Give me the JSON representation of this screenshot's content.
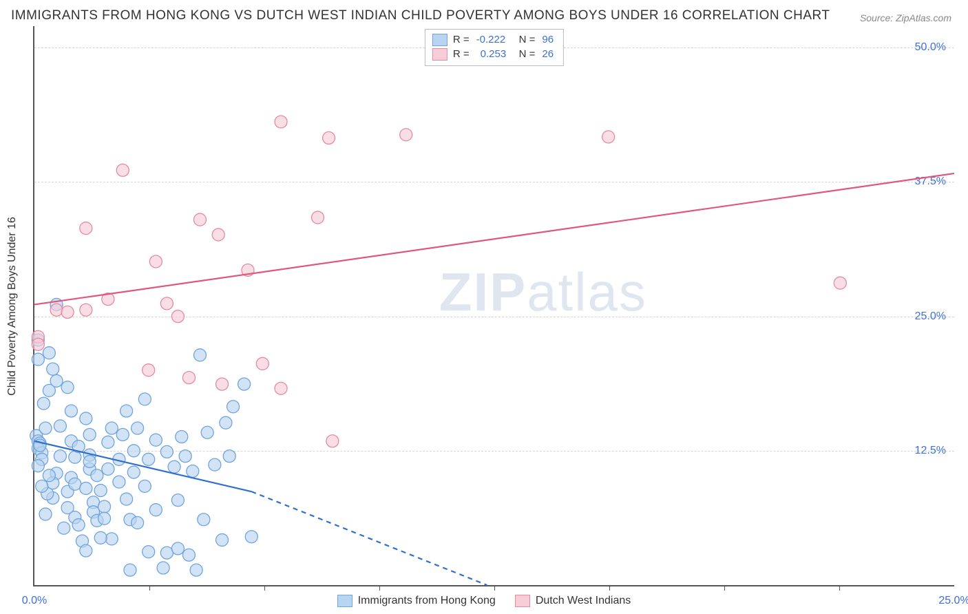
{
  "title": "IMMIGRANTS FROM HONG KONG VS DUTCH WEST INDIAN CHILD POVERTY AMONG BOYS UNDER 16 CORRELATION CHART",
  "source": "Source: ZipAtlas.com",
  "watermark_zip": "ZIP",
  "watermark_atlas": "atlas",
  "y_axis_label": "Child Poverty Among Boys Under 16",
  "chart": {
    "type": "scatter",
    "x_range": [
      0,
      25
    ],
    "y_range": [
      0,
      52
    ],
    "x_ticks": [
      {
        "v": 0,
        "label": "0.0%"
      },
      {
        "v": 25,
        "label": "25.0%"
      }
    ],
    "x_minor_ticks": [
      3.125,
      6.25,
      9.375,
      12.5,
      15.625,
      18.75,
      21.875
    ],
    "y_gridlines": [
      {
        "v": 12.5,
        "label": "12.5%"
      },
      {
        "v": 25,
        "label": "25.0%"
      },
      {
        "v": 37.5,
        "label": "37.5%"
      },
      {
        "v": 50,
        "label": "50.0%"
      }
    ],
    "background_color": "#ffffff",
    "grid_color": "#d5d5d5",
    "axis_color": "#555555",
    "tick_label_color": "#3d6fd6",
    "marker_radius": 9,
    "marker_stroke_width": 1.3,
    "seriesA": {
      "name": "Immigrants from Hong Kong",
      "fill": "#b9d4f0",
      "stroke": "#6fa4dd",
      "fill_opacity": 0.65,
      "R": "-0.222",
      "N": "96",
      "trend": {
        "solid": [
          [
            0,
            13.4
          ],
          [
            5.9,
            8.7
          ]
        ],
        "dashed": [
          [
            5.9,
            8.7
          ],
          [
            12.3,
            0
          ]
        ],
        "color": "#2f6fd0",
        "width": 2.2
      },
      "points": [
        [
          0.1,
          22.8
        ],
        [
          0.1,
          21.0
        ],
        [
          0.05,
          13.9
        ],
        [
          0.1,
          13.4
        ],
        [
          0.15,
          13.2
        ],
        [
          0.1,
          12.7
        ],
        [
          0.2,
          12.3
        ],
        [
          0.2,
          11.7
        ],
        [
          0.15,
          13.0
        ],
        [
          0.1,
          11.1
        ],
        [
          0.4,
          21.6
        ],
        [
          0.5,
          20.1
        ],
        [
          0.6,
          26.1
        ],
        [
          0.6,
          19.0
        ],
        [
          0.7,
          14.8
        ],
        [
          0.7,
          12.0
        ],
        [
          0.6,
          10.4
        ],
        [
          0.5,
          9.5
        ],
        [
          0.5,
          8.1
        ],
        [
          0.35,
          8.5
        ],
        [
          0.9,
          18.4
        ],
        [
          1.0,
          16.2
        ],
        [
          1.0,
          13.4
        ],
        [
          1.0,
          10.0
        ],
        [
          0.9,
          8.7
        ],
        [
          0.9,
          7.2
        ],
        [
          1.1,
          6.3
        ],
        [
          1.2,
          5.6
        ],
        [
          1.1,
          9.4
        ],
        [
          1.1,
          11.9
        ],
        [
          1.4,
          15.5
        ],
        [
          1.5,
          14.0
        ],
        [
          1.5,
          12.1
        ],
        [
          1.5,
          10.8
        ],
        [
          1.4,
          9.0
        ],
        [
          1.6,
          7.7
        ],
        [
          1.6,
          6.8
        ],
        [
          1.7,
          6.0
        ],
        [
          1.7,
          10.2
        ],
        [
          1.5,
          11.5
        ],
        [
          1.8,
          8.8
        ],
        [
          1.9,
          7.3
        ],
        [
          1.9,
          6.2
        ],
        [
          2.0,
          10.8
        ],
        [
          2.0,
          13.3
        ],
        [
          2.1,
          14.6
        ],
        [
          2.1,
          4.3
        ],
        [
          1.8,
          4.4
        ],
        [
          1.3,
          4.1
        ],
        [
          1.4,
          3.2
        ],
        [
          2.3,
          11.7
        ],
        [
          2.3,
          9.6
        ],
        [
          2.4,
          14.0
        ],
        [
          2.5,
          16.2
        ],
        [
          2.5,
          8.0
        ],
        [
          2.6,
          6.1
        ],
        [
          2.7,
          12.5
        ],
        [
          2.7,
          10.5
        ],
        [
          2.8,
          5.8
        ],
        [
          2.8,
          14.6
        ],
        [
          3.0,
          17.3
        ],
        [
          3.0,
          9.2
        ],
        [
          3.1,
          11.7
        ],
        [
          3.1,
          3.1
        ],
        [
          3.3,
          13.5
        ],
        [
          3.3,
          7.0
        ],
        [
          3.5,
          1.6
        ],
        [
          3.6,
          12.4
        ],
        [
          3.6,
          3.0
        ],
        [
          3.8,
          11.0
        ],
        [
          3.9,
          7.9
        ],
        [
          3.9,
          3.4
        ],
        [
          4.0,
          13.8
        ],
        [
          4.1,
          12.0
        ],
        [
          4.2,
          2.8
        ],
        [
          4.3,
          10.6
        ],
        [
          4.5,
          21.4
        ],
        [
          4.6,
          6.1
        ],
        [
          4.7,
          14.2
        ],
        [
          4.9,
          11.2
        ],
        [
          5.1,
          4.2
        ],
        [
          5.2,
          15.1
        ],
        [
          5.3,
          12.0
        ],
        [
          5.4,
          16.6
        ],
        [
          5.7,
          18.7
        ],
        [
          5.9,
          4.5
        ],
        [
          2.6,
          1.4
        ],
        [
          4.4,
          1.4
        ],
        [
          1.2,
          12.9
        ],
        [
          0.3,
          14.6
        ],
        [
          0.3,
          6.6
        ],
        [
          0.8,
          5.3
        ],
        [
          0.2,
          9.2
        ],
        [
          0.4,
          10.2
        ],
        [
          0.25,
          16.9
        ],
        [
          0.4,
          18.1
        ]
      ]
    },
    "seriesB": {
      "name": "Dutch West Indians",
      "fill": "#f7cdd8",
      "stroke": "#e48aa2",
      "fill_opacity": 0.65,
      "R": "0.253",
      "N": "26",
      "trend": {
        "solid": [
          [
            0,
            26.1
          ],
          [
            25,
            38.3
          ]
        ],
        "color": "#e0567c",
        "width": 2.2
      },
      "points": [
        [
          0.1,
          23.1
        ],
        [
          0.1,
          22.4
        ],
        [
          0.6,
          25.6
        ],
        [
          0.9,
          25.4
        ],
        [
          1.4,
          25.6
        ],
        [
          1.4,
          33.2
        ],
        [
          2.0,
          26.6
        ],
        [
          2.4,
          38.6
        ],
        [
          3.1,
          20.0
        ],
        [
          3.3,
          30.1
        ],
        [
          3.6,
          26.2
        ],
        [
          3.9,
          25.0
        ],
        [
          4.2,
          19.3
        ],
        [
          4.5,
          34.0
        ],
        [
          5.1,
          18.7
        ],
        [
          5.8,
          29.3
        ],
        [
          6.2,
          20.6
        ],
        [
          6.7,
          43.1
        ],
        [
          6.7,
          18.3
        ],
        [
          7.7,
          34.2
        ],
        [
          8.0,
          41.6
        ],
        [
          8.1,
          13.4
        ],
        [
          10.1,
          41.9
        ],
        [
          15.6,
          41.7
        ],
        [
          21.9,
          28.1
        ],
        [
          5.0,
          32.6
        ]
      ]
    }
  },
  "legend": {
    "R_label": "R =",
    "N_label": "N ="
  }
}
